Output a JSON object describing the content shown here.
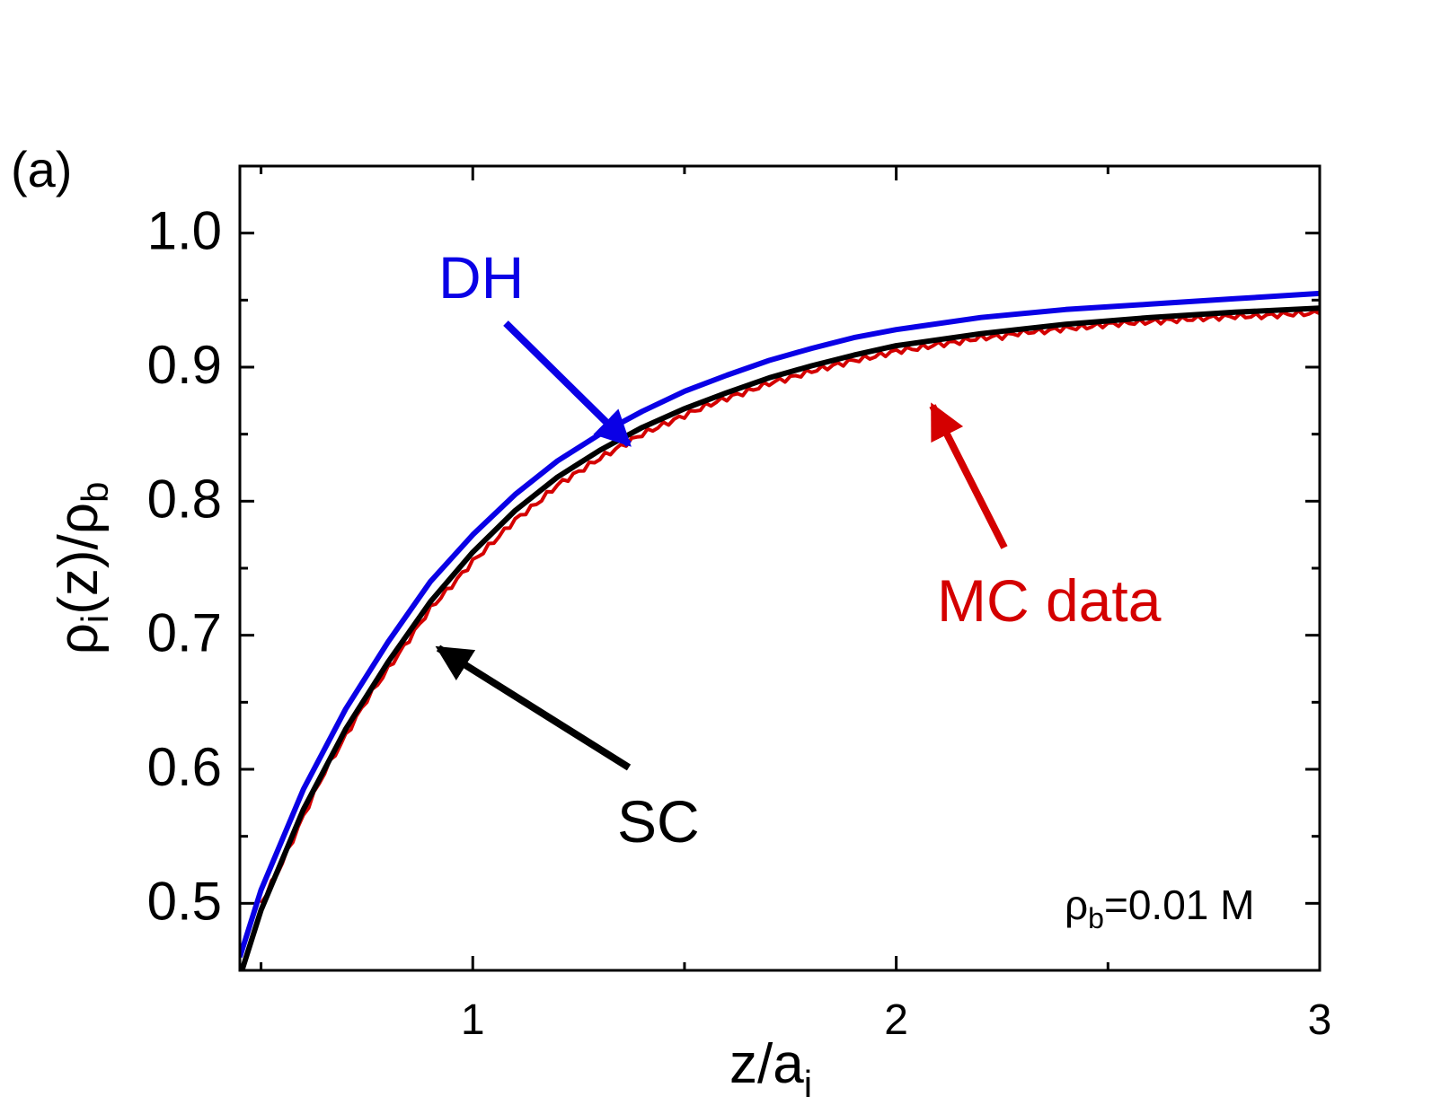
{
  "panel_label": "(a)",
  "chart_data": {
    "type": "line",
    "xlabel": {
      "main": "z/a",
      "sub": "i"
    },
    "ylabel": {
      "rho": "ρ",
      "sub_i": "i",
      "mid": "(z)/",
      "rho2": "ρ",
      "sub_b": "b"
    },
    "xlim": [
      0.45,
      3.0
    ],
    "ylim": [
      0.45,
      1.05
    ],
    "x_ticks": [
      1,
      2,
      3
    ],
    "x_tick_labels": [
      "1",
      "2",
      "3"
    ],
    "x_minor_ticks": [
      0.5,
      1.5,
      2.5
    ],
    "y_ticks": [
      0.5,
      0.6,
      0.7,
      0.8,
      0.9,
      1.0
    ],
    "y_tick_labels": [
      "0.5",
      "0.6",
      "0.7",
      "0.8",
      "0.9",
      "1.0"
    ],
    "y_minor_ticks": [
      0.55,
      0.65,
      0.75,
      0.85,
      0.95
    ],
    "grid": false,
    "annotation": {
      "rho": "ρ",
      "sub": "b",
      "text": "=0.01 M"
    },
    "series": [
      {
        "name": "DH",
        "label": "DH",
        "color": "#0a00e6",
        "x": [
          0.45,
          0.5,
          0.6,
          0.7,
          0.8,
          0.9,
          1.0,
          1.1,
          1.2,
          1.3,
          1.4,
          1.5,
          1.6,
          1.7,
          1.8,
          1.9,
          2.0,
          2.2,
          2.4,
          2.6,
          2.8,
          3.0
        ],
        "y": [
          0.46,
          0.51,
          0.585,
          0.645,
          0.695,
          0.74,
          0.775,
          0.805,
          0.83,
          0.85,
          0.867,
          0.882,
          0.894,
          0.905,
          0.914,
          0.922,
          0.928,
          0.937,
          0.943,
          0.947,
          0.951,
          0.955
        ]
      },
      {
        "name": "SC",
        "label": "SC",
        "color": "#000000",
        "x": [
          0.45,
          0.5,
          0.6,
          0.7,
          0.8,
          0.9,
          1.0,
          1.1,
          1.2,
          1.3,
          1.4,
          1.5,
          1.6,
          1.7,
          1.8,
          1.9,
          2.0,
          2.2,
          2.4,
          2.6,
          2.8,
          3.0
        ],
        "y": [
          0.445,
          0.495,
          0.57,
          0.63,
          0.68,
          0.725,
          0.762,
          0.793,
          0.818,
          0.838,
          0.855,
          0.869,
          0.881,
          0.892,
          0.901,
          0.909,
          0.916,
          0.925,
          0.932,
          0.937,
          0.941,
          0.944
        ]
      },
      {
        "name": "MC data",
        "label": "MC data",
        "color": "#d40000",
        "x": [
          0.5,
          0.55,
          0.6,
          0.65,
          0.7,
          0.75,
          0.8,
          0.85,
          0.9,
          0.95,
          1.0,
          1.05,
          1.1,
          1.15,
          1.2,
          1.25,
          1.3,
          1.35,
          1.4,
          1.45,
          1.5,
          1.55,
          1.6,
          1.65,
          1.7,
          1.75,
          1.8,
          1.85,
          1.9,
          1.95,
          2.0,
          2.05,
          2.1,
          2.15,
          2.2,
          2.25,
          2.3,
          2.35,
          2.4,
          2.45,
          2.5,
          2.55,
          2.6,
          2.65,
          2.7,
          2.75,
          2.8,
          2.85,
          2.9,
          2.95,
          3.0
        ],
        "y": [
          0.5,
          0.53,
          0.565,
          0.598,
          0.625,
          0.652,
          0.675,
          0.697,
          0.72,
          0.737,
          0.755,
          0.77,
          0.786,
          0.798,
          0.812,
          0.822,
          0.832,
          0.841,
          0.85,
          0.857,
          0.864,
          0.871,
          0.877,
          0.882,
          0.888,
          0.892,
          0.897,
          0.901,
          0.905,
          0.908,
          0.912,
          0.914,
          0.917,
          0.919,
          0.922,
          0.923,
          0.926,
          0.927,
          0.929,
          0.93,
          0.932,
          0.933,
          0.934,
          0.935,
          0.936,
          0.937,
          0.938,
          0.938,
          0.939,
          0.94,
          0.94
        ]
      }
    ]
  }
}
